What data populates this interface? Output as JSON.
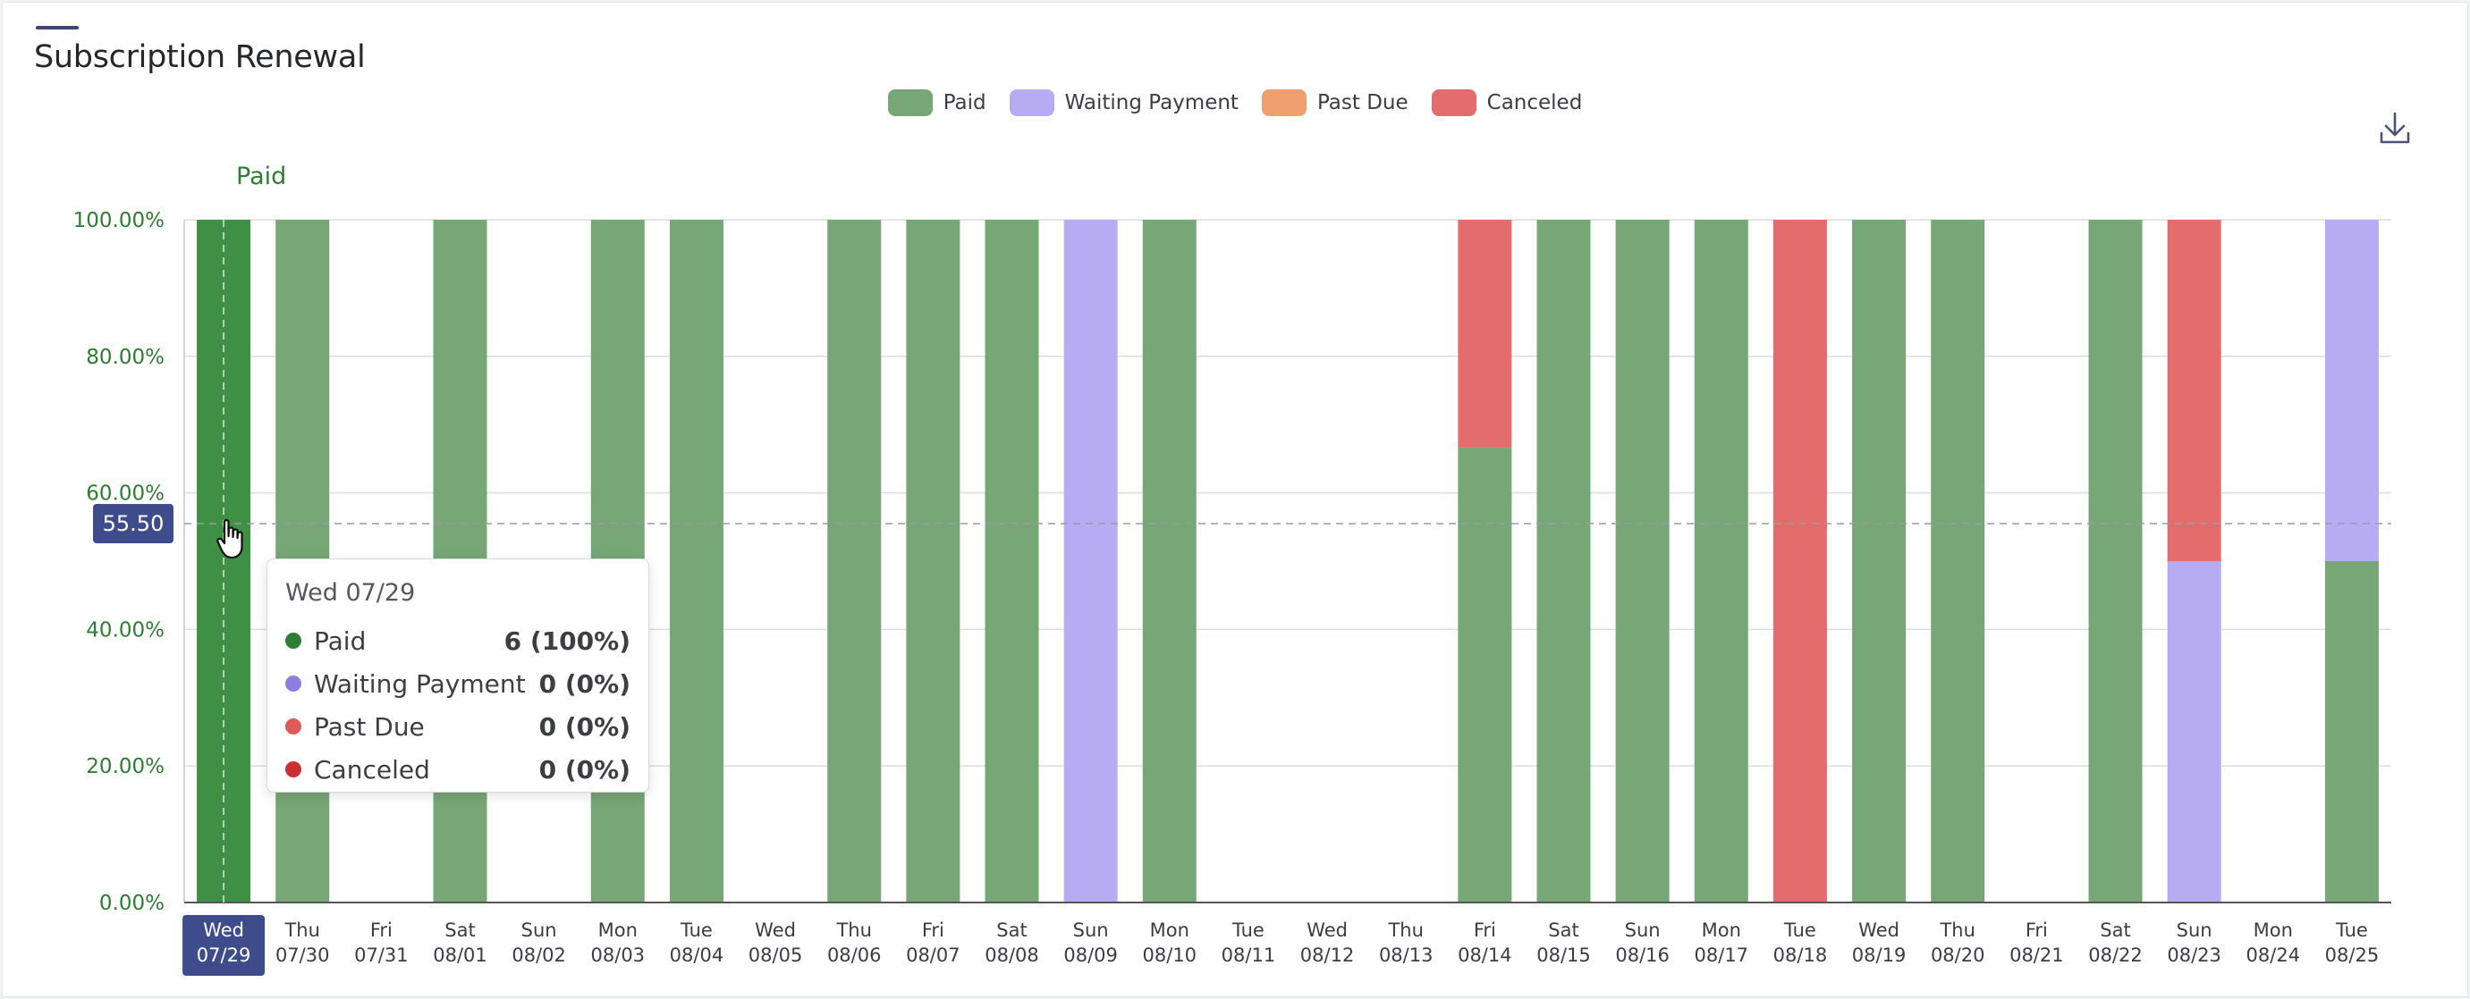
{
  "title": "Subscription Renewal",
  "legend": [
    {
      "label": "Paid",
      "color": "#77a677"
    },
    {
      "label": "Waiting Payment",
      "color": "#b7acf4"
    },
    {
      "label": "Past Due",
      "color": "#f0a070"
    },
    {
      "label": "Canceled",
      "color": "#e46c6c"
    }
  ],
  "download_icon": "download-icon",
  "series_label": "Paid",
  "crosshair_value": "55.50",
  "tooltip": {
    "date": "Wed 07/29",
    "rows": [
      {
        "name": "Paid",
        "value": "6 (100%)",
        "color": "#2e7d32"
      },
      {
        "name": "Waiting Payment",
        "value": "0 (0%)",
        "color": "#8f7de0"
      },
      {
        "name": "Past Due",
        "value": "0 (0%)",
        "color": "#e05a5a"
      },
      {
        "name": "Canceled",
        "value": "0 (0%)",
        "color": "#cc2f2f"
      }
    ]
  },
  "chart_data": {
    "type": "bar",
    "stacked": true,
    "percent": true,
    "ylim": [
      0,
      100
    ],
    "yticks": [
      "0.00%",
      "20.00%",
      "40.00%",
      "60.00%",
      "80.00%",
      "100.00%"
    ],
    "grid": true,
    "legend_position": "top-center",
    "highlighted_category": 0,
    "categories": [
      [
        "Wed",
        "07/29"
      ],
      [
        "Thu",
        "07/30"
      ],
      [
        "Fri",
        "07/31"
      ],
      [
        "Sat",
        "08/01"
      ],
      [
        "Sun",
        "08/02"
      ],
      [
        "Mon",
        "08/03"
      ],
      [
        "Tue",
        "08/04"
      ],
      [
        "Wed",
        "08/05"
      ],
      [
        "Thu",
        "08/06"
      ],
      [
        "Fri",
        "08/07"
      ],
      [
        "Sat",
        "08/08"
      ],
      [
        "Sun",
        "08/09"
      ],
      [
        "Mon",
        "08/10"
      ],
      [
        "Tue",
        "08/11"
      ],
      [
        "Wed",
        "08/12"
      ],
      [
        "Thu",
        "08/13"
      ],
      [
        "Fri",
        "08/14"
      ],
      [
        "Sat",
        "08/15"
      ],
      [
        "Sun",
        "08/16"
      ],
      [
        "Mon",
        "08/17"
      ],
      [
        "Tue",
        "08/18"
      ],
      [
        "Wed",
        "08/19"
      ],
      [
        "Thu",
        "08/20"
      ],
      [
        "Fri",
        "08/21"
      ],
      [
        "Sat",
        "08/22"
      ],
      [
        "Sun",
        "08/23"
      ],
      [
        "Mon",
        "08/24"
      ],
      [
        "Tue",
        "08/25"
      ]
    ],
    "series": [
      {
        "name": "Paid",
        "color": "#77a677",
        "values": [
          100,
          100,
          0,
          100,
          0,
          100,
          100,
          0,
          100,
          100,
          100,
          0,
          100,
          0,
          0,
          0,
          66.67,
          100,
          100,
          100,
          0,
          100,
          100,
          0,
          100,
          0,
          0,
          50
        ]
      },
      {
        "name": "Waiting Payment",
        "color": "#b7acf4",
        "values": [
          0,
          0,
          0,
          0,
          0,
          0,
          0,
          0,
          0,
          0,
          0,
          100,
          0,
          0,
          0,
          0,
          0,
          0,
          0,
          0,
          0,
          0,
          0,
          0,
          0,
          50,
          0,
          50
        ]
      },
      {
        "name": "Past Due",
        "color": "#f0a070",
        "values": [
          0,
          0,
          0,
          0,
          0,
          0,
          0,
          0,
          0,
          0,
          0,
          0,
          0,
          0,
          0,
          0,
          0,
          0,
          0,
          0,
          0,
          0,
          0,
          0,
          0,
          0,
          0,
          0
        ]
      },
      {
        "name": "Canceled",
        "color": "#e46c6c",
        "values": [
          0,
          0,
          0,
          0,
          0,
          0,
          0,
          0,
          0,
          0,
          0,
          0,
          0,
          0,
          0,
          0,
          33.33,
          0,
          0,
          0,
          100,
          0,
          0,
          0,
          0,
          50,
          0,
          0
        ]
      }
    ]
  }
}
